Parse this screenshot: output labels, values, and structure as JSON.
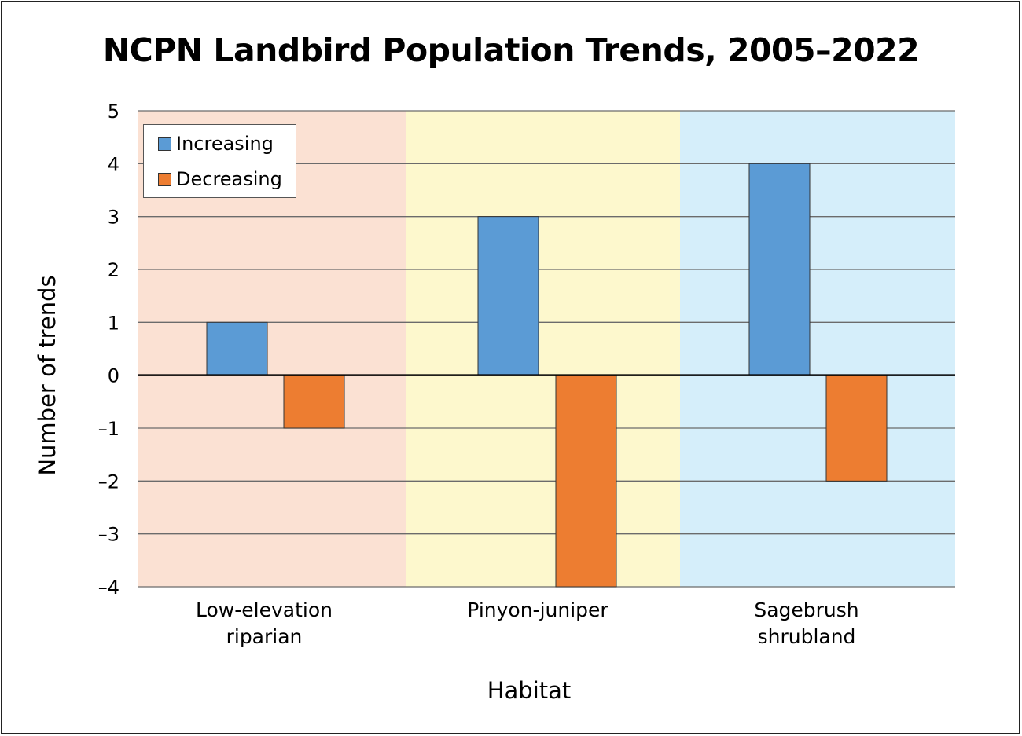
{
  "chart_data": {
    "type": "bar",
    "title": "NCPN Landbird Population Trends, 2005–2022",
    "xlabel": "Habitat",
    "ylabel": "Number of trends",
    "ylim": [
      -4,
      5
    ],
    "yticks": [
      "5",
      "4",
      "3",
      "2",
      "1",
      "0",
      "–1",
      "–2",
      "–3",
      "–4"
    ],
    "ytick_values": [
      5,
      4,
      3,
      2,
      1,
      0,
      -1,
      -2,
      -3,
      -4
    ],
    "grid": true,
    "legend_position": "top-left",
    "categories": [
      {
        "line1": "Low-elevation",
        "line2": "riparian",
        "background": "#fbe1d3"
      },
      {
        "line1": "Pinyon-juniper",
        "line2": "",
        "background": "#fdf8cd"
      },
      {
        "line1": "Sagebrush",
        "line2": "shrubland",
        "background": "#d5eefa"
      }
    ],
    "series": [
      {
        "name": "Increasing",
        "color": "#5b9bd5",
        "values": [
          1,
          3,
          4
        ]
      },
      {
        "name": "Decreasing",
        "color": "#ed7d31",
        "values": [
          -1,
          -4,
          -2
        ]
      }
    ]
  }
}
